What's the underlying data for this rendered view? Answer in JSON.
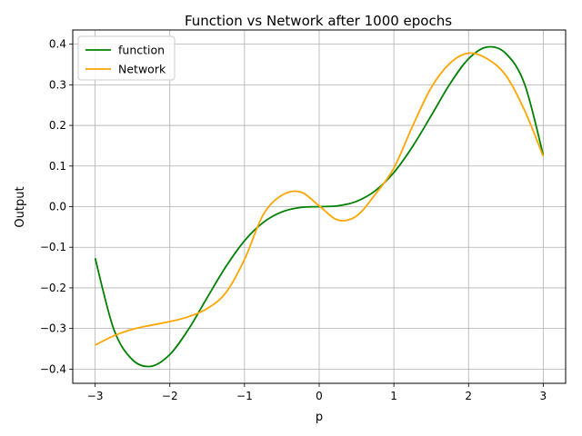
{
  "chart_data": {
    "type": "line",
    "title": "Function vs Network after 1000 epochs",
    "xlabel": "p",
    "ylabel": "Output",
    "xlim": [
      -3.3,
      3.3
    ],
    "ylim": [
      -0.435,
      0.435
    ],
    "xticks": [
      -3,
      -2,
      -1,
      0,
      1,
      2,
      3
    ],
    "xtick_labels": [
      "−3",
      "−2",
      "−1",
      "0",
      "1",
      "2",
      "3"
    ],
    "yticks": [
      -0.4,
      -0.3,
      -0.2,
      -0.1,
      0.0,
      0.1,
      0.2,
      0.3,
      0.4
    ],
    "ytick_labels": [
      "−0.4",
      "−0.3",
      "−0.2",
      "−0.1",
      "0.0",
      "0.1",
      "0.2",
      "0.3",
      "0.4"
    ],
    "grid": true,
    "legend_position": "top-left",
    "x": [
      -3.0,
      -2.75,
      -2.5,
      -2.25,
      -2.0,
      -1.75,
      -1.5,
      -1.25,
      -1.0,
      -0.75,
      -0.5,
      -0.25,
      0.0,
      0.25,
      0.5,
      0.75,
      1.0,
      1.25,
      1.5,
      1.75,
      2.0,
      2.25,
      2.5,
      2.75,
      3.0
    ],
    "series": [
      {
        "name": "function",
        "color": "#008000",
        "values": [
          -0.127,
          -0.302,
          -0.377,
          -0.393,
          -0.364,
          -0.302,
          -0.224,
          -0.148,
          -0.084,
          -0.039,
          -0.013,
          -0.002,
          0.0,
          0.002,
          0.013,
          0.039,
          0.084,
          0.148,
          0.224,
          0.302,
          0.364,
          0.393,
          0.377,
          0.302,
          0.127
        ]
      },
      {
        "name": "Network",
        "color": "#ffa500",
        "values": [
          -0.341,
          -0.318,
          -0.302,
          -0.292,
          -0.283,
          -0.271,
          -0.251,
          -0.212,
          -0.13,
          -0.02,
          0.028,
          0.036,
          0.002,
          -0.033,
          -0.023,
          0.03,
          0.095,
          0.198,
          0.293,
          0.353,
          0.378,
          0.364,
          0.323,
          0.237,
          0.124
        ]
      }
    ]
  }
}
